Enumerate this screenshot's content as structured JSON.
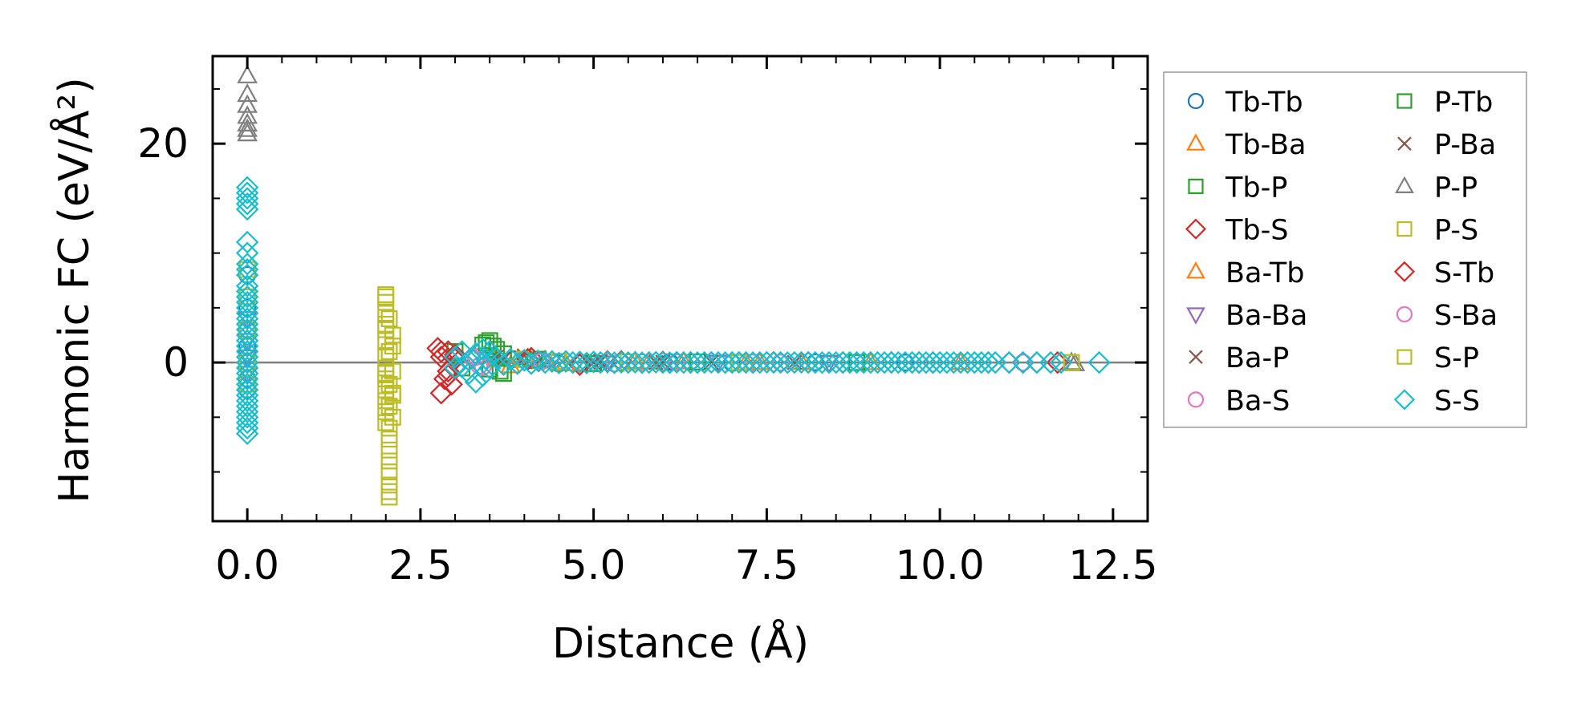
{
  "chart_data": {
    "type": "scatter",
    "xlabel": "Distance (Å)",
    "ylabel": "Harmonic FC (eV/Å²)",
    "xlim": [
      -0.5,
      13.0
    ],
    "ylim": [
      -14.5,
      28.0
    ],
    "x_ticks": [
      0.0,
      2.5,
      5.0,
      7.5,
      10.0,
      12.5
    ],
    "x_tick_labels": [
      "0.0",
      "2.5",
      "5.0",
      "7.5",
      "10.0",
      "12.5"
    ],
    "y_ticks": [
      0,
      20
    ],
    "y_tick_labels": [
      "0",
      "20"
    ],
    "zero_line": true,
    "legend_position": "outside-right",
    "series": [
      {
        "name": "Tb-Tb",
        "marker": "circle",
        "color": "#1f77b4",
        "points": [
          [
            0,
            8.0
          ],
          [
            0,
            5.0
          ],
          [
            0,
            3.0
          ],
          [
            0,
            1.5
          ],
          [
            0,
            0.0
          ],
          [
            0,
            -1.5
          ],
          [
            0,
            -2.5
          ],
          [
            3.85,
            0.3
          ],
          [
            4.5,
            -0.1
          ],
          [
            6.1,
            0.05
          ],
          [
            7.0,
            -0.05
          ],
          [
            8.2,
            0.02
          ],
          [
            9.5,
            0.0
          ]
        ]
      },
      {
        "name": "Tb-Ba",
        "marker": "triangle-up",
        "color": "#ff7f0e",
        "points": [
          [
            3.6,
            0.4
          ],
          [
            3.8,
            -0.3
          ],
          [
            4.3,
            0.2
          ],
          [
            4.9,
            -0.1
          ],
          [
            5.6,
            0.1
          ],
          [
            6.3,
            0.05
          ],
          [
            7.2,
            -0.03
          ],
          [
            8.0,
            0.02
          ],
          [
            9.0,
            0.0
          ],
          [
            10.3,
            0.01
          ]
        ]
      },
      {
        "name": "Tb-P",
        "marker": "square",
        "color": "#2ca02c",
        "points": [
          [
            3.0,
            1.0
          ],
          [
            3.1,
            -0.5
          ],
          [
            3.4,
            1.6
          ],
          [
            3.5,
            2.0
          ],
          [
            3.5,
            -0.6
          ],
          [
            3.6,
            1.2
          ],
          [
            3.7,
            0.8
          ],
          [
            3.7,
            -1.0
          ],
          [
            4.2,
            0.3
          ],
          [
            5.0,
            -0.1
          ],
          [
            6.5,
            0.05
          ],
          [
            8.8,
            0.0
          ]
        ]
      },
      {
        "name": "Tb-S",
        "marker": "diamond",
        "color": "#d62728",
        "points": [
          [
            2.75,
            1.3
          ],
          [
            2.8,
            0.5
          ],
          [
            2.8,
            -2.8
          ],
          [
            2.85,
            -1.5
          ],
          [
            2.9,
            -0.8
          ],
          [
            2.9,
            1.0
          ],
          [
            2.95,
            -2.0
          ],
          [
            3.0,
            0.3
          ],
          [
            3.0,
            -0.5
          ],
          [
            4.1,
            0.4
          ],
          [
            4.8,
            -0.2
          ],
          [
            5.4,
            0.1
          ],
          [
            6.0,
            0.05
          ],
          [
            7.6,
            0.02
          ],
          [
            8.6,
            0.0
          ],
          [
            9.3,
            0.01
          ],
          [
            9.9,
            0.0
          ],
          [
            10.7,
            0.0
          ],
          [
            11.0,
            0.0
          ],
          [
            11.4,
            0.0
          ],
          [
            11.7,
            0.0
          ]
        ]
      },
      {
        "name": "Ba-Tb",
        "marker": "triangle-up",
        "color": "#ff7f0e",
        "points": [
          [
            3.9,
            0.2
          ],
          [
            4.6,
            -0.1
          ],
          [
            5.8,
            0.05
          ],
          [
            7.4,
            0.0
          ]
        ]
      },
      {
        "name": "Ba-Ba",
        "marker": "triangle-down",
        "color": "#9467bd",
        "points": [
          [
            0,
            4.0
          ],
          [
            0,
            2.0
          ],
          [
            0,
            0.5
          ],
          [
            0,
            -1.0
          ],
          [
            4.4,
            0.1
          ],
          [
            5.2,
            -0.05
          ],
          [
            6.8,
            0.02
          ],
          [
            8.4,
            0.0
          ]
        ]
      },
      {
        "name": "Ba-P",
        "marker": "x",
        "color": "#8c564b",
        "points": [
          [
            3.6,
            0.5
          ],
          [
            4.0,
            0.6
          ],
          [
            4.3,
            -0.2
          ],
          [
            5.1,
            0.1
          ],
          [
            5.9,
            0.0
          ],
          [
            6.7,
            0.03
          ],
          [
            7.9,
            0.0
          ]
        ]
      },
      {
        "name": "Ba-S",
        "marker": "circle",
        "color": "#e377c2",
        "points": [
          [
            3.3,
            0.5
          ],
          [
            3.4,
            -0.4
          ],
          [
            4.2,
            0.2
          ],
          [
            5.3,
            -0.1
          ],
          [
            6.2,
            0.02
          ],
          [
            7.7,
            0.0
          ]
        ]
      },
      {
        "name": "P-Tb",
        "marker": "square",
        "color": "#2ca02c",
        "points": [
          [
            3.45,
            1.8
          ],
          [
            3.55,
            1.5
          ],
          [
            3.65,
            -0.8
          ],
          [
            4.15,
            0.2
          ]
        ]
      },
      {
        "name": "P-Ba",
        "marker": "x",
        "color": "#8c564b",
        "points": [
          [
            3.7,
            0.3
          ],
          [
            4.1,
            0.4
          ],
          [
            5.0,
            0.0
          ],
          [
            6.0,
            0.02
          ]
        ]
      },
      {
        "name": "P-P",
        "marker": "triangle-up",
        "color": "#7f7f7f",
        "points": [
          [
            0,
            26.2
          ],
          [
            0,
            24.5
          ],
          [
            0,
            23.5
          ],
          [
            0,
            22.5
          ],
          [
            0,
            21.8
          ],
          [
            0,
            21.3
          ],
          [
            0,
            20.9
          ],
          [
            11.9,
            0.0
          ],
          [
            11.95,
            -0.1
          ]
        ]
      },
      {
        "name": "P-S",
        "marker": "square",
        "color": "#bcbd22",
        "points": [
          [
            0,
            8.5
          ],
          [
            0,
            6.0
          ],
          [
            0,
            3.0
          ],
          [
            0,
            0.0
          ],
          [
            0,
            -2.0
          ],
          [
            2.0,
            6.0
          ],
          [
            2.0,
            5.5
          ],
          [
            2.0,
            4.5
          ],
          [
            2.0,
            3.5
          ],
          [
            2.0,
            2.0
          ],
          [
            2.0,
            0.5
          ],
          [
            2.0,
            -0.5
          ],
          [
            2.0,
            -1.5
          ],
          [
            2.0,
            -2.5
          ],
          [
            2.0,
            -3.5
          ],
          [
            2.0,
            -4.5
          ],
          [
            2.0,
            -5.5
          ],
          [
            2.05,
            4.0
          ],
          [
            2.05,
            1.0
          ],
          [
            2.05,
            -2.0
          ],
          [
            2.05,
            -4.0
          ],
          [
            2.05,
            -7.0
          ],
          [
            2.05,
            -9.0
          ],
          [
            2.05,
            -10.0
          ],
          [
            2.05,
            -11.2
          ],
          [
            2.05,
            -12.3
          ],
          [
            2.1,
            2.5
          ],
          [
            2.1,
            -0.8
          ],
          [
            2.1,
            -3.0
          ],
          [
            2.1,
            -5.0
          ],
          [
            4.0,
            0.3
          ],
          [
            4.5,
            0.1
          ],
          [
            5.5,
            0.05
          ],
          [
            7.1,
            0.0
          ],
          [
            11.9,
            0.0
          ]
        ]
      },
      {
        "name": "S-Tb",
        "marker": "diamond",
        "color": "#d62728",
        "points": [
          [
            2.8,
            1.0
          ],
          [
            2.9,
            -1.2
          ],
          [
            3.0,
            0.7
          ],
          [
            4.05,
            0.3
          ],
          [
            5.2,
            0.1
          ],
          [
            6.4,
            0.0
          ],
          [
            8.1,
            0.01
          ],
          [
            9.7,
            0.0
          ],
          [
            11.2,
            0.0
          ]
        ]
      },
      {
        "name": "S-Ba",
        "marker": "circle",
        "color": "#e377c2",
        "points": [
          [
            3.25,
            0.4
          ],
          [
            3.35,
            -0.3
          ],
          [
            4.25,
            0.1
          ],
          [
            5.7,
            0.02
          ],
          [
            7.3,
            0.0
          ],
          [
            11.2,
            0.0
          ]
        ]
      },
      {
        "name": "S-P",
        "marker": "square",
        "color": "#bcbd22",
        "points": [
          [
            2.0,
            6.2
          ],
          [
            2.0,
            3.0
          ],
          [
            2.0,
            -1.0
          ],
          [
            2.05,
            -6.0
          ],
          [
            2.05,
            -8.0
          ],
          [
            2.05,
            -11.8
          ],
          [
            2.1,
            1.5
          ],
          [
            2.1,
            -2.8
          ]
        ]
      },
      {
        "name": "S-S",
        "marker": "diamond",
        "color": "#17becf",
        "points": [
          [
            0,
            16.0
          ],
          [
            0,
            15.5
          ],
          [
            0,
            15.0
          ],
          [
            0,
            14.5
          ],
          [
            0,
            14.0
          ],
          [
            0,
            11.0
          ],
          [
            0,
            10.0
          ],
          [
            0,
            9.0
          ],
          [
            0,
            8.5
          ],
          [
            0,
            8.0
          ],
          [
            0,
            7.0
          ],
          [
            0,
            6.5
          ],
          [
            0,
            6.0
          ],
          [
            0,
            5.5
          ],
          [
            0,
            5.0
          ],
          [
            0,
            4.5
          ],
          [
            0,
            4.0
          ],
          [
            0,
            3.5
          ],
          [
            0,
            3.0
          ],
          [
            0,
            2.5
          ],
          [
            0,
            2.0
          ],
          [
            0,
            1.5
          ],
          [
            0,
            1.0
          ],
          [
            0,
            0.5
          ],
          [
            0,
            0.0
          ],
          [
            0,
            -0.5
          ],
          [
            0,
            -1.0
          ],
          [
            0,
            -1.5
          ],
          [
            0,
            -2.0
          ],
          [
            0,
            -2.5
          ],
          [
            0,
            -3.0
          ],
          [
            0,
            -3.5
          ],
          [
            0,
            -4.0
          ],
          [
            0,
            -4.5
          ],
          [
            0,
            -5.0
          ],
          [
            0,
            -5.5
          ],
          [
            0,
            -6.0
          ],
          [
            0,
            -6.5
          ],
          [
            3.0,
            0.5
          ],
          [
            3.0,
            -0.5
          ],
          [
            3.1,
            1.0
          ],
          [
            3.1,
            -0.4
          ],
          [
            3.2,
            0.2
          ],
          [
            3.2,
            -1.0
          ],
          [
            3.3,
            0.8
          ],
          [
            3.3,
            -1.8
          ],
          [
            3.4,
            1.2
          ],
          [
            3.4,
            -1.2
          ],
          [
            3.45,
            0.3
          ],
          [
            3.5,
            1.0
          ],
          [
            3.5,
            -0.5
          ],
          [
            3.6,
            0.4
          ],
          [
            3.7,
            -0.2
          ],
          [
            3.8,
            0.3
          ],
          [
            3.9,
            -0.1
          ],
          [
            4.0,
            0.2
          ],
          [
            4.1,
            -0.1
          ],
          [
            4.2,
            0.15
          ],
          [
            4.3,
            0.0
          ],
          [
            4.4,
            0.1
          ],
          [
            4.5,
            -0.05
          ],
          [
            4.6,
            0.1
          ],
          [
            4.7,
            0.0
          ],
          [
            4.8,
            0.05
          ],
          [
            4.9,
            -0.05
          ],
          [
            5.0,
            0.05
          ],
          [
            5.1,
            0.0
          ],
          [
            5.2,
            0.05
          ],
          [
            5.3,
            -0.02
          ],
          [
            5.4,
            0.02
          ],
          [
            5.5,
            0.0
          ],
          [
            5.6,
            0.02
          ],
          [
            5.7,
            -0.02
          ],
          [
            5.8,
            0.0
          ],
          [
            5.9,
            0.02
          ],
          [
            6.0,
            0.0
          ],
          [
            6.1,
            -0.02
          ],
          [
            6.2,
            0.02
          ],
          [
            6.3,
            0.0
          ],
          [
            6.4,
            0.01
          ],
          [
            6.5,
            -0.01
          ],
          [
            6.6,
            0.0
          ],
          [
            6.7,
            0.01
          ],
          [
            6.8,
            0.0
          ],
          [
            6.9,
            -0.01
          ],
          [
            7.0,
            0.0
          ],
          [
            7.1,
            0.01
          ],
          [
            7.2,
            0.0
          ],
          [
            7.3,
            -0.01
          ],
          [
            7.4,
            0.0
          ],
          [
            7.5,
            0.01
          ],
          [
            7.6,
            0.0
          ],
          [
            7.7,
            0.0
          ],
          [
            7.8,
            -0.01
          ],
          [
            7.9,
            0.0
          ],
          [
            8.0,
            0.01
          ],
          [
            8.1,
            0.0
          ],
          [
            8.2,
            0.0
          ],
          [
            8.3,
            -0.01
          ],
          [
            8.4,
            0.0
          ],
          [
            8.5,
            0.0
          ],
          [
            8.6,
            0.01
          ],
          [
            8.7,
            0.0
          ],
          [
            8.8,
            0.0
          ],
          [
            8.9,
            0.0
          ],
          [
            9.0,
            0.0
          ],
          [
            9.1,
            0.0
          ],
          [
            9.2,
            0.0
          ],
          [
            9.3,
            0.0
          ],
          [
            9.4,
            0.0
          ],
          [
            9.5,
            0.0
          ],
          [
            9.6,
            0.0
          ],
          [
            9.7,
            0.0
          ],
          [
            9.8,
            0.0
          ],
          [
            9.9,
            0.0
          ],
          [
            10.0,
            0.0
          ],
          [
            10.1,
            0.0
          ],
          [
            10.2,
            0.0
          ],
          [
            10.3,
            0.0
          ],
          [
            10.4,
            0.0
          ],
          [
            10.5,
            0.0
          ],
          [
            10.6,
            0.0
          ],
          [
            10.7,
            0.0
          ],
          [
            10.8,
            0.0
          ],
          [
            11.0,
            0.0
          ],
          [
            11.2,
            0.0
          ],
          [
            11.4,
            0.0
          ],
          [
            11.6,
            0.0
          ],
          [
            11.75,
            0.0
          ],
          [
            12.3,
            0.0
          ]
        ]
      }
    ]
  }
}
